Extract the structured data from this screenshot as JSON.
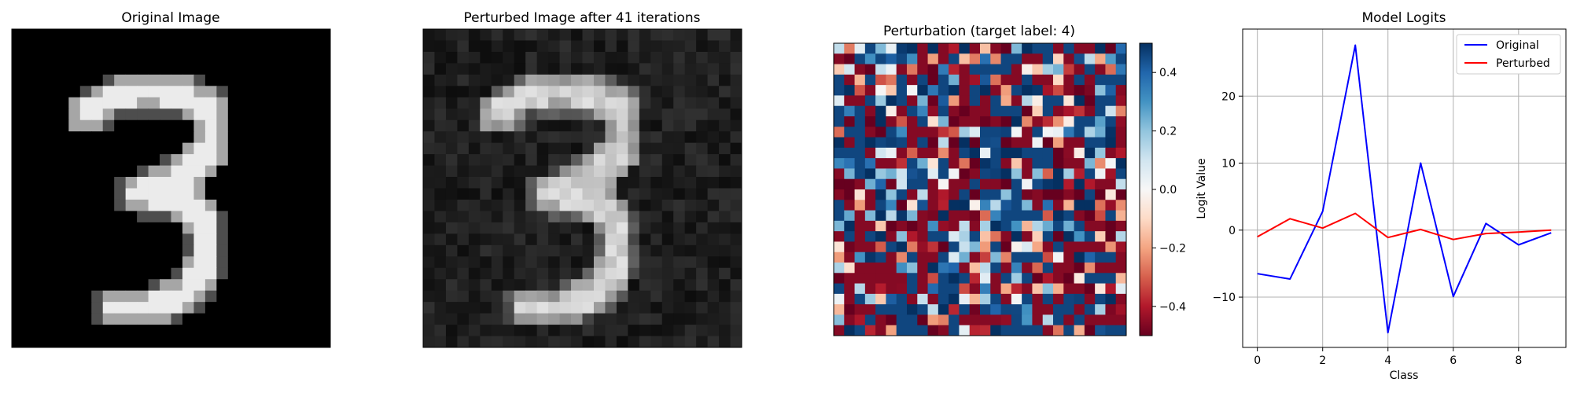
{
  "chart_data": [
    {
      "type": "heatmap",
      "title": "Original Image",
      "colormap": "gray",
      "grid": false,
      "rows": 28,
      "cols": 28
    },
    {
      "type": "heatmap",
      "title": "Perturbed Image after 41 iterations",
      "colormap": "gray",
      "grid": false,
      "rows": 28,
      "cols": 28
    },
    {
      "type": "heatmap",
      "title": "Perturbation (target label: 4)",
      "colormap": "RdBu",
      "grid": false,
      "rows": 28,
      "cols": 28,
      "colorbar": {
        "range": [
          -0.5,
          0.5
        ],
        "ticks": [
          -0.4,
          -0.2,
          0.0,
          0.2,
          0.4
        ],
        "tick_labels": [
          "−0.4",
          "−0.2",
          "0.0",
          "0.2",
          "0.4"
        ]
      }
    },
    {
      "type": "line",
      "title": "Model Logits",
      "xlabel": "Class",
      "ylabel": "Logit Value",
      "xlim": [
        -0.45,
        9.45
      ],
      "ylim": [
        -17.5,
        30
      ],
      "xticks": [
        0,
        2,
        4,
        6,
        8
      ],
      "xtick_labels": [
        "0",
        "2",
        "4",
        "6",
        "8"
      ],
      "yticks": [
        -10,
        0,
        10,
        20
      ],
      "ytick_labels": [
        "−10",
        "0",
        "10",
        "20"
      ],
      "grid": true,
      "legend": "top-right",
      "x": [
        0,
        1,
        2,
        3,
        4,
        5,
        6,
        7,
        8,
        9
      ],
      "series": [
        {
          "name": "Original",
          "color": "#0000ff",
          "values": [
            -6.5,
            -7.3,
            2.8,
            27.6,
            -15.3,
            10.0,
            -9.9,
            1.0,
            -2.2,
            -0.4
          ]
        },
        {
          "name": "Perturbed",
          "color": "#ff0000",
          "values": [
            -1.0,
            1.7,
            0.3,
            2.5,
            -1.1,
            0.1,
            -1.4,
            -0.5,
            -0.3,
            0.0
          ]
        }
      ]
    }
  ]
}
